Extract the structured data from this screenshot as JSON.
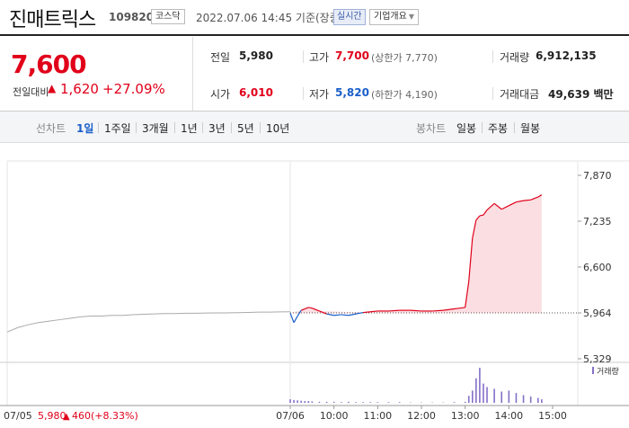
{
  "header": {
    "name": "진매트릭스",
    "code": "109820",
    "market": "코스닥",
    "date": "2022.07.06 14:45 기준(장중)",
    "realtime": "실시간",
    "info": "기업개요"
  },
  "summary": {
    "price": "7,600",
    "change_label": "전일대비",
    "change_arrow": "▲",
    "change_value": "1,620",
    "change_rate": "+27.09%",
    "prev_label": "전일",
    "prev_value": "5,980",
    "high_label": "고가",
    "high_value": "7,700",
    "high_limit": "(상한가 7,770)",
    "volume_label": "거래량",
    "volume_value": "6,912,135",
    "open_label": "시가",
    "open_value": "6,010",
    "low_label": "저가",
    "low_value": "5,820",
    "low_limit": "(하한가 4,190)",
    "amount_label": "거래대금",
    "amount_value": "49,639 백만"
  },
  "tabs": {
    "line_label": "선차트",
    "line_tabs": [
      "1일",
      "1주일",
      "3개월",
      "1년",
      "3년",
      "5년",
      "10년"
    ],
    "candle_label": "봉차트",
    "candle_tabs": [
      "일봉",
      "주봉",
      "월봉"
    ]
  },
  "colors": {
    "up": "#e0001a",
    "down": "#1a5fc9",
    "prev": "#aaaaaa",
    "volume": "#8470c8"
  },
  "chart_data": {
    "type": "line",
    "ylim": [
      5329,
      7870
    ],
    "y_ticks": [
      "7,870",
      "7,235",
      "6,600",
      "5,964",
      "5,329"
    ],
    "x_ticks": [
      "07/06",
      "10:00",
      "11:00",
      "12:00",
      "13:00",
      "14:00",
      "15:00"
    ],
    "reference_value": 5964,
    "volume_label": "거래량",
    "prev_day": {
      "label": "07/05",
      "close": "5,980",
      "change_arrow": "▲",
      "change": "460",
      "rate": "(+8.33%)",
      "values": [
        5700,
        5760,
        5800,
        5830,
        5850,
        5870,
        5890,
        5910,
        5920,
        5920,
        5930,
        5930,
        5940,
        5945,
        5950,
        5955,
        5955,
        5960,
        5960,
        5962,
        5965,
        5965,
        5968,
        5970,
        5975,
        5975,
        5978,
        5980
      ]
    },
    "today": {
      "times": [
        "09:00",
        "09:05",
        "09:10",
        "09:15",
        "09:20",
        "09:25",
        "09:30",
        "09:40",
        "09:50",
        "10:00",
        "10:10",
        "10:20",
        "10:30",
        "10:40",
        "10:50",
        "11:00",
        "11:15",
        "11:30",
        "11:45",
        "12:00",
        "12:15",
        "12:30",
        "12:45",
        "13:00",
        "13:05",
        "13:10",
        "13:15",
        "13:20",
        "13:25",
        "13:30",
        "13:40",
        "13:50",
        "14:00",
        "14:10",
        "14:20",
        "14:30",
        "14:40",
        "14:45"
      ],
      "values": [
        5960,
        5830,
        5920,
        6000,
        6020,
        6040,
        6030,
        5990,
        5950,
        5930,
        5940,
        5930,
        5950,
        5970,
        5980,
        5990,
        5990,
        6000,
        6000,
        5990,
        5990,
        6000,
        6020,
        6040,
        6400,
        7000,
        7250,
        7310,
        7320,
        7390,
        7480,
        7400,
        7450,
        7500,
        7520,
        7530,
        7570,
        7600
      ],
      "volume": [
        10,
        8,
        7,
        6,
        5,
        5,
        4,
        3,
        3,
        3,
        2,
        3,
        2,
        2,
        2,
        2,
        2,
        2,
        1,
        1,
        1,
        1,
        2,
        3,
        20,
        35,
        70,
        100,
        55,
        45,
        40,
        32,
        35,
        28,
        22,
        18,
        14,
        10
      ]
    }
  }
}
